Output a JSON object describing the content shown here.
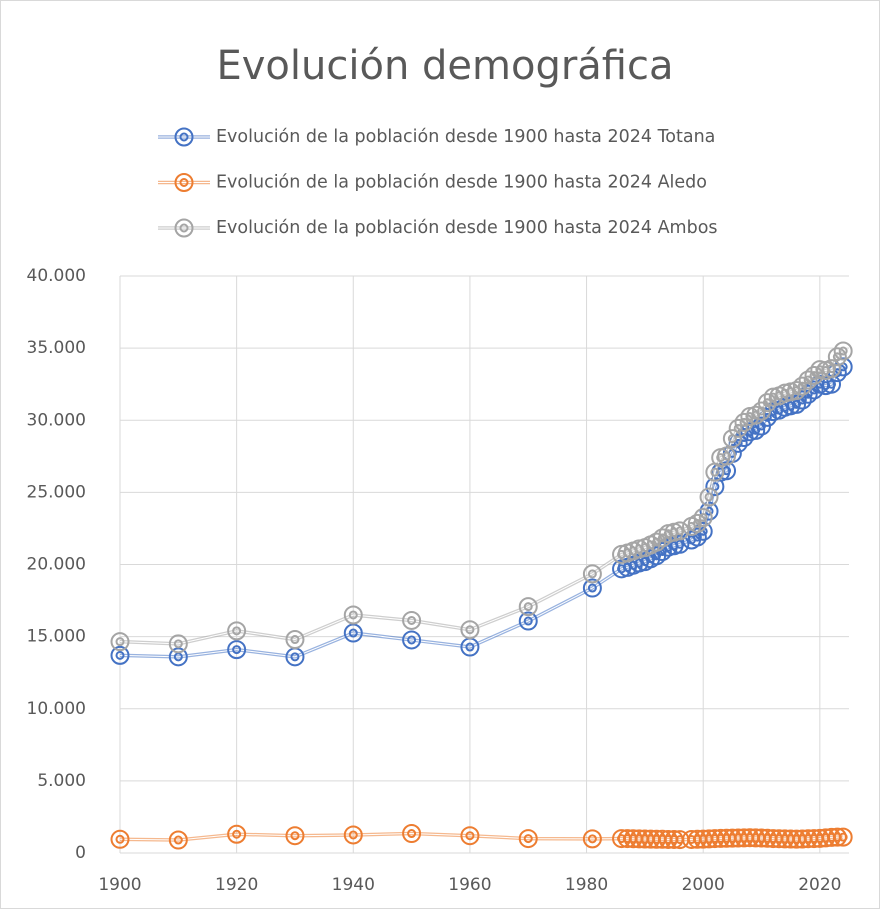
{
  "chart_data": {
    "type": "line",
    "title": "Evolución demográfica",
    "x": [
      1900,
      1910,
      1920,
      1930,
      1940,
      1950,
      1960,
      1970,
      1981,
      1986,
      1987,
      1988,
      1989,
      1990,
      1991,
      1992,
      1993,
      1994,
      1995,
      1996,
      1998,
      1999,
      2000,
      2001,
      2002,
      2003,
      2004,
      2005,
      2006,
      2007,
      2008,
      2009,
      2010,
      2011,
      2012,
      2013,
      2014,
      2015,
      2016,
      2017,
      2018,
      2019,
      2020,
      2021,
      2022,
      2023,
      2024
    ],
    "series": [
      {
        "name": "Evolución de la población desde 1900 hasta 2024 Totana",
        "color": "#4472c4",
        "values": [
          13700,
          13600,
          14100,
          13600,
          15250,
          14770,
          14280,
          16080,
          18370,
          19700,
          19800,
          19950,
          20100,
          20200,
          20400,
          20600,
          20900,
          21200,
          21300,
          21400,
          21700,
          21900,
          22300,
          23700,
          25400,
          26400,
          26500,
          27700,
          28400,
          28800,
          29200,
          29300,
          29600,
          30200,
          30600,
          30700,
          30900,
          31000,
          31100,
          31400,
          31800,
          32100,
          32500,
          32400,
          32500,
          33300,
          33700
        ]
      },
      {
        "name": "Evolución de la población desde 1900 hasta 2024 Aledo",
        "color": "#ed7d31",
        "values": [
          950,
          900,
          1300,
          1200,
          1250,
          1350,
          1200,
          1000,
          980,
          1000,
          1000,
          990,
          980,
          970,
          960,
          950,
          950,
          940,
          940,
          930,
          940,
          950,
          960,
          980,
          1000,
          1010,
          1020,
          1030,
          1040,
          1050,
          1060,
          1050,
          1040,
          1020,
          1000,
          990,
          980,
          970,
          960,
          970,
          990,
          1000,
          1010,
          1050,
          1080,
          1100,
          1100
        ]
      },
      {
        "name": "Evolución de la población desde 1900 hasta 2024 Ambos",
        "color": "#a5a5a5",
        "values": [
          14650,
          14500,
          15400,
          14800,
          16500,
          16120,
          15480,
          17080,
          19350,
          20700,
          20800,
          20940,
          21080,
          21170,
          21360,
          21550,
          21850,
          22140,
          22240,
          22330,
          22640,
          22850,
          23260,
          24680,
          26400,
          27410,
          27520,
          28730,
          29440,
          29850,
          30260,
          30350,
          30640,
          31220,
          31600,
          31690,
          31880,
          31970,
          32060,
          32370,
          32790,
          33100,
          33510,
          33450,
          33580,
          34400,
          34800
        ]
      }
    ],
    "xlim": [
      1900,
      2025
    ],
    "xticks": [
      1900,
      1920,
      1940,
      1960,
      1980,
      2000,
      2020
    ],
    "ylim": [
      0,
      40000
    ],
    "yticks": [
      0,
      {
        "value": 5000,
        "label": "5.000"
      },
      {
        "value": 10000,
        "label": "10.000"
      },
      {
        "value": 15000,
        "label": "15.000"
      },
      {
        "value": 20000,
        "label": "20.000"
      },
      {
        "value": 25000,
        "label": "25.000"
      },
      {
        "value": 30000,
        "label": "30.000"
      },
      {
        "value": 35000,
        "label": "35.000"
      },
      {
        "value": 40000,
        "label": "40.000"
      }
    ],
    "grid": true,
    "legend": "top"
  }
}
